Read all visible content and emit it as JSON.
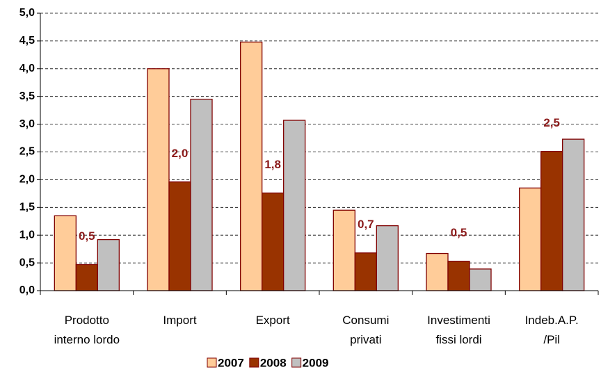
{
  "chart_data": {
    "type": "bar",
    "categories": [
      "Prodotto\ninterno lordo",
      "Import",
      "Export",
      "Consumi\nprivati",
      "Investimenti\nfissi lordi",
      "Indeb.A.P.\n/Pil"
    ],
    "series": [
      {
        "name": "2007",
        "color": "#ffcc99",
        "values": [
          1.35,
          4.0,
          4.48,
          1.45,
          0.67,
          1.85
        ]
      },
      {
        "name": "2008",
        "color": "#993300",
        "values": [
          0.47,
          1.96,
          1.76,
          0.68,
          0.53,
          2.51
        ],
        "value_labels": [
          "0,5",
          "2,0",
          "1,8",
          "0,7",
          "0,5",
          "2,5"
        ]
      },
      {
        "name": "2009",
        "color": "#c0c0c0",
        "values": [
          0.92,
          3.45,
          3.07,
          1.17,
          0.39,
          2.73
        ]
      }
    ],
    "ylim": [
      0,
      5
    ],
    "yticks": [
      {
        "value": 0,
        "label": "0,0"
      },
      {
        "value": 0.5,
        "label": "0,5"
      },
      {
        "value": 1,
        "label": "1,0"
      },
      {
        "value": 1.5,
        "label": "1,5"
      },
      {
        "value": 2,
        "label": "2,0"
      },
      {
        "value": 2.5,
        "label": "2,5"
      },
      {
        "value": 3,
        "label": "3,0"
      },
      {
        "value": 3.5,
        "label": "3,5"
      },
      {
        "value": 4,
        "label": "4,0"
      },
      {
        "value": 4.5,
        "label": "4,5"
      },
      {
        "value": 5,
        "label": "5,0"
      }
    ],
    "grid": true,
    "legend": "bottom"
  }
}
